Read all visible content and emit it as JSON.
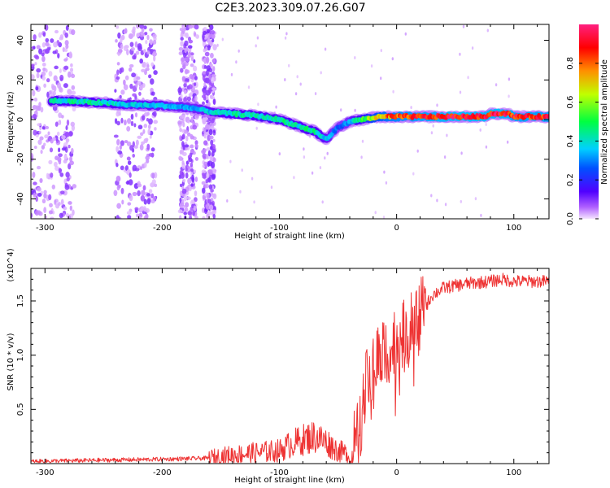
{
  "title": "C2E3.2023.309.07.26.G07",
  "chart_data": [
    {
      "type": "heatmap",
      "xlabel": "Height of straight line (km)",
      "ylabel": "Frequency (Hz)",
      "xlim": [
        -312,
        130
      ],
      "ylim": [
        -50,
        48
      ],
      "x_ticks": [
        -300,
        -200,
        -100,
        0,
        100
      ],
      "x_tick_labels": [
        "-300",
        "-200",
        "-100",
        "0",
        "100"
      ],
      "y_ticks": [
        -40,
        -20,
        0,
        20,
        40
      ],
      "y_tick_labels": [
        "-40",
        "-20",
        "0",
        "20",
        "40"
      ],
      "colorbar": {
        "label": "Normalized spectral amplitude",
        "range": [
          0,
          1
        ],
        "ticks": [
          0.0,
          0.2,
          0.4,
          0.6,
          0.8
        ],
        "tick_labels": [
          "0.0",
          "0.2",
          "0.4",
          "0.6",
          "0.8"
        ],
        "colormap": [
          "#f0d8ff",
          "#b060ff",
          "#5000ff",
          "#0050ff",
          "#00d0ff",
          "#00ff40",
          "#c0ff00",
          "#ff9000",
          "#ff0000",
          "#ff2080"
        ]
      },
      "ridge": {
        "x": [
          -290,
          -250,
          -230,
          -200,
          -175,
          -160,
          -140,
          -120,
          -100,
          -85,
          -70,
          -60,
          -50,
          -40,
          -30,
          -20,
          -10,
          0,
          20,
          50,
          75,
          80,
          95,
          100,
          130
        ],
        "y": [
          9.5,
          8.5,
          7.5,
          7,
          6,
          4,
          3,
          2,
          0,
          -3,
          -6,
          -10,
          -4,
          -1,
          0,
          1,
          1.5,
          1.5,
          1.5,
          1.5,
          1.5,
          3,
          3,
          1.5,
          1.5
        ],
        "amplitude": [
          0.5,
          0.5,
          0.45,
          0.45,
          0.4,
          0.45,
          0.5,
          0.5,
          0.5,
          0.5,
          0.5,
          0.45,
          0.35,
          0.4,
          0.55,
          0.7,
          0.8,
          0.85,
          0.9,
          0.95,
          0.95,
          0.95,
          0.95,
          0.9,
          0.9
        ]
      },
      "noise_bands": [
        [
          -312,
          -275
        ],
        [
          -240,
          -205
        ],
        [
          -185,
          -170
        ],
        [
          -165,
          -155
        ]
      ]
    },
    {
      "type": "line",
      "xlabel": "Height of straight line (km)",
      "ylabel": "SNR (10 * v/v)",
      "y_multiplier": "(x10^4)",
      "xlim": [
        -312,
        130
      ],
      "ylim": [
        0,
        1.8
      ],
      "x_ticks": [
        -300,
        -200,
        -100,
        0,
        100
      ],
      "x_tick_labels": [
        "-300",
        "-200",
        "-100",
        "0",
        "100"
      ],
      "y_ticks": [
        0.5,
        1.0,
        1.5
      ],
      "y_tick_labels": [
        "0.5",
        "1.0",
        "1.5"
      ],
      "series": [
        {
          "color": "#ee3333",
          "x": [
            -312,
            -260,
            -200,
            -160,
            -140,
            -120,
            -100,
            -90,
            -80,
            -70,
            -60,
            -50,
            -40,
            -35,
            -30,
            -25,
            -20,
            -15,
            -10,
            -5,
            0,
            10,
            20,
            30,
            40,
            60,
            80,
            90,
            100,
            130
          ],
          "y": [
            0.02,
            0.03,
            0.04,
            0.05,
            0.08,
            0.1,
            0.12,
            0.18,
            0.22,
            0.25,
            0.2,
            0.12,
            0.08,
            0.2,
            0.45,
            0.75,
            0.9,
            1.0,
            1.05,
            1.1,
            1.1,
            1.2,
            1.35,
            1.55,
            1.62,
            1.66,
            1.68,
            1.7,
            1.68,
            1.68
          ]
        }
      ]
    }
  ]
}
